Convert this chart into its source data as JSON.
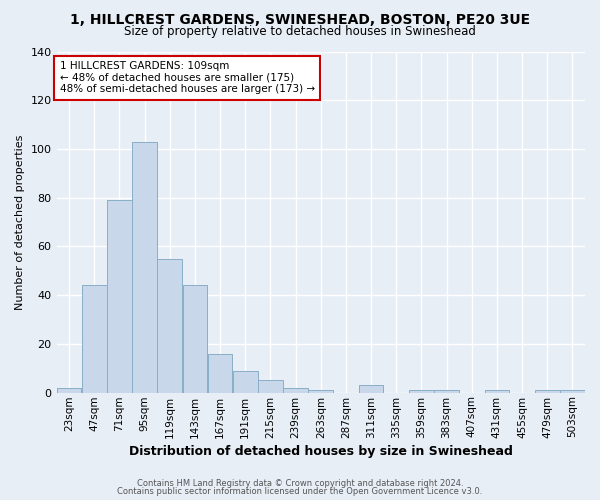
{
  "title1": "1, HILLCREST GARDENS, SWINESHEAD, BOSTON, PE20 3UE",
  "title2": "Size of property relative to detached houses in Swineshead",
  "xlabel": "Distribution of detached houses by size in Swineshead",
  "ylabel": "Number of detached properties",
  "footer1": "Contains HM Land Registry data © Crown copyright and database right 2024.",
  "footer2": "Contains public sector information licensed under the Open Government Licence v3.0.",
  "annotation_title": "1 HILLCREST GARDENS: 109sqm",
  "annotation_line2": "← 48% of detached houses are smaller (175)",
  "annotation_line3": "48% of semi-detached houses are larger (173) →",
  "bar_labels": [
    "23sqm",
    "47sqm",
    "71sqm",
    "95sqm",
    "119sqm",
    "143sqm",
    "167sqm",
    "191sqm",
    "215sqm",
    "239sqm",
    "263sqm",
    "287sqm",
    "311sqm",
    "335sqm",
    "359sqm",
    "383sqm",
    "407sqm",
    "431sqm",
    "455sqm",
    "479sqm",
    "503sqm"
  ],
  "bar_values": [
    2,
    44,
    79,
    103,
    55,
    44,
    16,
    9,
    5,
    2,
    1,
    0,
    3,
    0,
    1,
    1,
    0,
    1,
    0,
    1,
    1
  ],
  "bar_edges": [
    23,
    47,
    71,
    95,
    119,
    143,
    167,
    191,
    215,
    239,
    263,
    287,
    311,
    335,
    359,
    383,
    407,
    431,
    455,
    479,
    503,
    527
  ],
  "bar_color": "#c8d8ea",
  "bar_edge_color": "#8aaec8",
  "annotation_box_color": "#ffffff",
  "annotation_box_edge": "#cc0000",
  "bg_color": "#e8eef6",
  "grid_color": "#ffffff",
  "ylim": [
    0,
    140
  ],
  "yticks": [
    0,
    20,
    40,
    60,
    80,
    100,
    120,
    140
  ]
}
